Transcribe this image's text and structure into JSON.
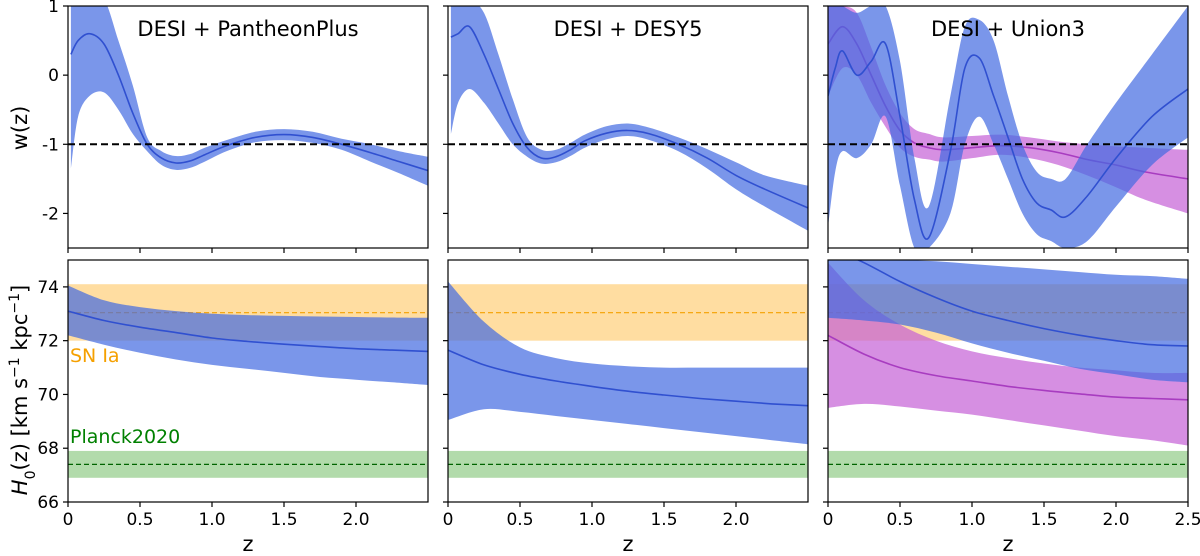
{
  "chart_data": {
    "type": "line",
    "layout": "2x3 grid",
    "colors": {
      "desi_band": "#4169e1",
      "desi_line": "#3050d0",
      "union_band": "#c45fd6",
      "union_line": "#a83cc0",
      "sn_band": "#ffd58a",
      "sn_line": "#f5a000",
      "planck_band": "#98cf8f",
      "planck_line": "#006400",
      "sn_label": "#f5a000",
      "planck_label": "#008000"
    },
    "top_row": {
      "ylabel": "w(z)",
      "ylim": [
        -2.5,
        1
      ],
      "yticks": [
        1,
        0,
        -1,
        -2
      ],
      "ytick_labels": [
        "1",
        "0",
        "-1",
        "-2"
      ],
      "reference_w": -1
    },
    "bottom_row": {
      "ylabel_main": "H",
      "ylabel_sub": "0",
      "ylabel_rest": "(z) [km s",
      "ylabel_sup1": "−1",
      "ylabel_mid": " kpc",
      "ylabel_sup2": "−1",
      "ylabel_end": "]",
      "ylim": [
        66,
        75
      ],
      "yticks": [
        66,
        68,
        70,
        72,
        74
      ],
      "ytick_labels": [
        "66",
        "68",
        "70",
        "72",
        "74"
      ],
      "sn_label": "SN Ia",
      "planck_label": "Planck2020",
      "sn_mean": 73.04,
      "sn_range": [
        72.0,
        74.1
      ],
      "planck_mean": 67.4,
      "planck_range": [
        66.9,
        67.9
      ]
    },
    "xlabel": "z",
    "panels": [
      {
        "title": "DESI + PantheonPlus",
        "xlim": [
          0,
          2.5
        ],
        "xticks": [
          0,
          0.5,
          1.0,
          1.5,
          2.0
        ],
        "xtick_labels": [
          "0",
          "0.5",
          "1.0",
          "1.5",
          "2.0"
        ],
        "w_series": [
          {
            "name": "DESI + PantheonPlus",
            "color_key": "desi",
            "x": [
              0.02,
              0.07,
              0.15,
              0.25,
              0.35,
              0.45,
              0.55,
              0.65,
              0.75,
              0.85,
              0.95,
              1.1,
              1.3,
              1.5,
              1.7,
              1.9,
              2.1,
              2.3,
              2.5
            ],
            "y": [
              0.3,
              0.5,
              0.6,
              0.45,
              0.0,
              -0.55,
              -1.0,
              -1.2,
              -1.27,
              -1.24,
              -1.15,
              -1.02,
              -0.9,
              -0.86,
              -0.9,
              -1.0,
              -1.12,
              -1.25,
              -1.38
            ],
            "lo": [
              -1.35,
              -0.6,
              -0.3,
              -0.25,
              -0.5,
              -0.85,
              -1.1,
              -1.3,
              -1.37,
              -1.34,
              -1.25,
              -1.1,
              -0.97,
              -0.94,
              -0.98,
              -1.08,
              -1.25,
              -1.42,
              -1.6
            ],
            "hi": [
              1.1,
              1.1,
              1.1,
              1.1,
              0.5,
              -0.15,
              -0.9,
              -1.1,
              -1.17,
              -1.14,
              -1.05,
              -0.94,
              -0.82,
              -0.78,
              -0.82,
              -0.92,
              -1.0,
              -1.1,
              -1.18
            ]
          }
        ],
        "h0_series": [
          {
            "name": "DESI + PantheonPlus",
            "color_key": "desi",
            "x": [
              0.0,
              0.25,
              0.5,
              0.75,
              1.0,
              1.25,
              1.5,
              1.75,
              2.0,
              2.25,
              2.5
            ],
            "y": [
              73.1,
              72.75,
              72.5,
              72.3,
              72.1,
              71.97,
              71.87,
              71.78,
              71.7,
              71.65,
              71.6
            ],
            "lo": [
              72.2,
              71.85,
              71.55,
              71.3,
              71.1,
              70.95,
              70.8,
              70.65,
              70.55,
              70.45,
              70.35
            ],
            "hi": [
              74.05,
              73.5,
              73.25,
              73.1,
              73.0,
              72.95,
              72.92,
              72.9,
              72.88,
              72.86,
              72.85
            ]
          }
        ],
        "show_ref_labels": true
      },
      {
        "title": "DESI + DESY5",
        "xlim": [
          0,
          2.5
        ],
        "xticks": [
          0,
          0.5,
          1.0,
          1.5,
          2.0
        ],
        "xtick_labels": [
          "0",
          "0.5",
          "1.0",
          "1.5",
          "2.0"
        ],
        "w_series": [
          {
            "name": "DESI + DESY5",
            "color_key": "desi",
            "x": [
              0.02,
              0.07,
              0.15,
              0.25,
              0.35,
              0.45,
              0.55,
              0.65,
              0.75,
              0.85,
              0.95,
              1.1,
              1.25,
              1.4,
              1.6,
              1.8,
              2.0,
              2.2,
              2.5
            ],
            "y": [
              0.55,
              0.6,
              0.7,
              0.3,
              -0.2,
              -0.7,
              -1.05,
              -1.2,
              -1.18,
              -1.08,
              -0.95,
              -0.84,
              -0.8,
              -0.85,
              -1.0,
              -1.2,
              -1.45,
              -1.65,
              -1.92
            ],
            "lo": [
              -0.85,
              -0.4,
              -0.2,
              -0.4,
              -0.7,
              -1.0,
              -1.18,
              -1.28,
              -1.26,
              -1.17,
              -1.05,
              -0.93,
              -0.88,
              -0.94,
              -1.1,
              -1.35,
              -1.65,
              -1.9,
              -2.25
            ],
            "hi": [
              1.1,
              1.1,
              1.1,
              0.9,
              0.3,
              -0.35,
              -0.9,
              -1.08,
              -1.08,
              -0.98,
              -0.86,
              -0.74,
              -0.7,
              -0.76,
              -0.9,
              -1.07,
              -1.26,
              -1.45,
              -1.6
            ]
          }
        ],
        "h0_series": [
          {
            "name": "DESI + DESY5",
            "color_key": "desi",
            "x": [
              0.0,
              0.25,
              0.5,
              0.75,
              1.0,
              1.25,
              1.5,
              1.75,
              2.0,
              2.25,
              2.5
            ],
            "y": [
              71.65,
              71.1,
              70.75,
              70.5,
              70.3,
              70.12,
              69.98,
              69.85,
              69.75,
              69.65,
              69.58
            ],
            "lo": [
              69.05,
              69.45,
              69.35,
              69.2,
              69.05,
              68.9,
              68.75,
              68.6,
              68.45,
              68.3,
              68.15
            ],
            "hi": [
              74.2,
              72.7,
              71.75,
              71.35,
              71.15,
              71.05,
              71.0,
              71.0,
              71.0,
              71.0,
              71.0
            ]
          }
        ],
        "show_ref_labels": false
      },
      {
        "title": "DESI + Union3",
        "xlim": [
          0,
          2.5
        ],
        "xticks": [
          0,
          0.5,
          1.0,
          1.5,
          2.0,
          2.5
        ],
        "xtick_labels": [
          "0",
          "0.5",
          "1.0",
          "1.5",
          "2.0",
          "2.5"
        ],
        "w_series": [
          {
            "name": "DESI + Union3 (magenta)",
            "color_key": "union",
            "x": [
              0.0,
              0.1,
              0.2,
              0.3,
              0.4,
              0.5,
              0.6,
              0.7,
              0.8,
              1.0,
              1.2,
              1.4,
              1.6,
              1.8,
              2.0,
              2.2,
              2.5
            ],
            "y": [
              0.45,
              0.7,
              0.45,
              0.0,
              -0.45,
              -0.8,
              -0.98,
              -1.05,
              -1.08,
              -1.05,
              -1.02,
              -1.05,
              -1.12,
              -1.22,
              -1.3,
              -1.4,
              -1.5
            ],
            "lo": [
              -0.3,
              0.1,
              0.0,
              -0.4,
              -0.75,
              -1.05,
              -1.18,
              -1.22,
              -1.25,
              -1.2,
              -1.15,
              -1.2,
              -1.3,
              -1.45,
              -1.62,
              -1.8,
              -2.0
            ],
            "hi": [
              1.0,
              1.0,
              0.9,
              0.4,
              -0.15,
              -0.55,
              -0.78,
              -0.85,
              -0.9,
              -0.88,
              -0.86,
              -0.9,
              -0.96,
              -1.0,
              -1.03,
              -1.05,
              -1.08
            ]
          },
          {
            "name": "DESI + Union3 (blue)",
            "color_key": "desi",
            "x": [
              0.0,
              0.05,
              0.1,
              0.2,
              0.3,
              0.4,
              0.5,
              0.6,
              0.7,
              0.85,
              0.95,
              1.05,
              1.15,
              1.25,
              1.35,
              1.45,
              1.55,
              1.65,
              1.8,
              2.0,
              2.25,
              2.5
            ],
            "y": [
              -0.3,
              0.1,
              0.35,
              0.0,
              0.2,
              0.45,
              -0.6,
              -1.8,
              -2.35,
              -1.1,
              0.1,
              0.25,
              -0.3,
              -0.9,
              -1.5,
              -1.85,
              -1.95,
              -2.05,
              -1.75,
              -1.2,
              -0.6,
              -0.2
            ],
            "lo": [
              -2.2,
              -1.4,
              -1.1,
              -1.2,
              -1.0,
              -0.6,
              -1.6,
              -2.5,
              -2.5,
              -2.0,
              -1.0,
              -0.6,
              -1.0,
              -1.5,
              -2.0,
              -2.3,
              -2.4,
              -2.5,
              -2.4,
              -1.9,
              -1.3,
              -0.9
            ],
            "hi": [
              1.0,
              1.0,
              1.0,
              0.9,
              1.0,
              1.0,
              0.2,
              -1.2,
              -1.9,
              -0.3,
              0.7,
              0.8,
              0.5,
              -0.3,
              -1.0,
              -1.4,
              -1.5,
              -1.5,
              -1.0,
              -0.4,
              0.3,
              1.0
            ]
          }
        ],
        "h0_series": [
          {
            "name": "DESI + Union3 (magenta)",
            "color_key": "union",
            "x": [
              0.0,
              0.25,
              0.5,
              0.75,
              1.0,
              1.25,
              1.5,
              1.75,
              2.0,
              2.25,
              2.5
            ],
            "y": [
              72.2,
              71.5,
              71.0,
              70.7,
              70.5,
              70.3,
              70.15,
              70.02,
              69.9,
              69.85,
              69.8
            ],
            "lo": [
              69.5,
              69.65,
              69.55,
              69.4,
              69.25,
              69.05,
              68.85,
              68.65,
              68.45,
              68.3,
              68.1
            ],
            "hi": [
              74.9,
              73.5,
              72.6,
              72.0,
              71.6,
              71.35,
              71.15,
              71.0,
              70.9,
              70.8,
              70.8
            ]
          },
          {
            "name": "DESI + Union3 (blue)",
            "color_key": "desi",
            "x": [
              0.0,
              0.25,
              0.5,
              0.75,
              1.0,
              1.25,
              1.5,
              1.75,
              2.0,
              2.25,
              2.5
            ],
            "y": [
              75.5,
              74.9,
              74.2,
              73.6,
              73.1,
              72.75,
              72.45,
              72.2,
              72.0,
              71.85,
              71.8
            ],
            "lo": [
              72.85,
              72.75,
              72.6,
              72.3,
              71.9,
              71.55,
              71.25,
              70.95,
              70.75,
              70.55,
              70.45
            ],
            "hi": [
              75.0,
              75.0,
              75.0,
              74.95,
              74.85,
              74.75,
              74.65,
              74.55,
              74.45,
              74.4,
              74.3
            ]
          }
        ],
        "show_ref_labels": false
      }
    ]
  }
}
